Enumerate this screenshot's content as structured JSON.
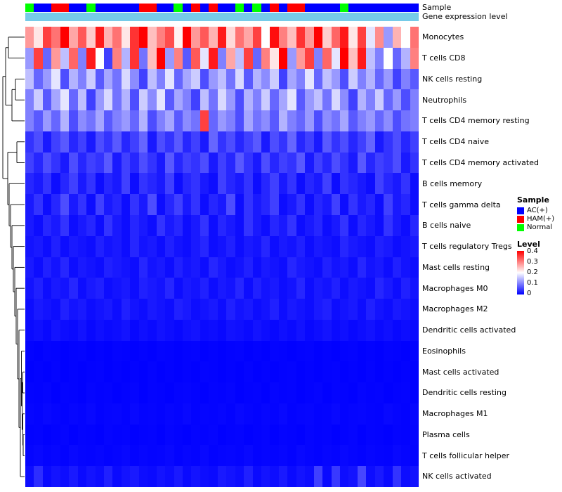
{
  "annotations": {
    "sample_label": "Sample",
    "expression_label": "Gene expression level"
  },
  "legend": {
    "sample_title": "Sample",
    "sample_items": [
      {
        "label": "AC(+)",
        "color": "#0000FF"
      },
      {
        "label": "HAM(+)",
        "color": "#FF0000"
      },
      {
        "label": "Normal",
        "color": "#00FF00"
      }
    ],
    "level_title": "Level",
    "level_ticks": [
      "0.4",
      "0.3",
      "0.2",
      "0.1",
      "0"
    ],
    "level_gradient": [
      "#FF0000",
      "#FFFFFF",
      "#0000FF"
    ]
  },
  "chart_data": {
    "type": "heatmap",
    "value_range": [
      0,
      0.4
    ],
    "colorscale": {
      "low": "#0000FF",
      "mid": "#FFFFFF",
      "high": "#FF0000",
      "midpoint": 0.2
    },
    "expression_bar_color": "#76CBE8",
    "sample_colors": {
      "AC(+)": "#0000FF",
      "HAM(+)": "#FF0000",
      "Normal": "#00FF00"
    },
    "n_columns": 45,
    "sample_annotation": [
      "Normal",
      "AC(+)",
      "AC(+)",
      "HAM(+)",
      "HAM(+)",
      "AC(+)",
      "AC(+)",
      "Normal",
      "AC(+)",
      "AC(+)",
      "AC(+)",
      "AC(+)",
      "AC(+)",
      "HAM(+)",
      "HAM(+)",
      "AC(+)",
      "AC(+)",
      "Normal",
      "AC(+)",
      "HAM(+)",
      "AC(+)",
      "HAM(+)",
      "AC(+)",
      "AC(+)",
      "Normal",
      "AC(+)",
      "Normal",
      "AC(+)",
      "HAM(+)",
      "AC(+)",
      "HAM(+)",
      "HAM(+)",
      "AC(+)",
      "AC(+)",
      "AC(+)",
      "AC(+)",
      "Normal",
      "AC(+)",
      "AC(+)",
      "AC(+)",
      "AC(+)",
      "AC(+)",
      "AC(+)",
      "AC(+)",
      "AC(+)"
    ],
    "rows": [
      "Monocytes",
      "T cells CD8",
      "NK cells resting",
      "Neutrophils",
      "T cells CD4 memory resting",
      "T cells CD4 naive",
      "T cells CD4 memory activated",
      "B cells memory",
      "T cells gamma delta",
      "B cells naive",
      "T cells regulatory Tregs",
      "Mast cells resting",
      "Macrophages M0",
      "Macrophages M2",
      "Dendritic cells activated",
      "Eosinophils",
      "Mast cells activated",
      "Dendritic cells resting",
      "Macrophages M1",
      "Plasma cells",
      "T cells follicular helper",
      "NK cells activated"
    ],
    "values": [
      [
        0.28,
        0.22,
        0.35,
        0.31,
        0.42,
        0.27,
        0.33,
        0.24,
        0.38,
        0.26,
        0.31,
        0.22,
        0.36,
        0.4,
        0.25,
        0.3,
        0.34,
        0.21,
        0.41,
        0.28,
        0.33,
        0.26,
        0.38,
        0.23,
        0.31,
        0.27,
        0.35,
        0.2,
        0.39,
        0.3,
        0.25,
        0.36,
        0.28,
        0.42,
        0.24,
        0.32,
        0.38,
        0.22,
        0.35,
        0.18,
        0.29,
        0.12,
        0.26,
        0.2,
        0.31
      ],
      [
        0.12,
        0.35,
        0.08,
        0.28,
        0.15,
        0.32,
        0.1,
        0.38,
        0.2,
        0.05,
        0.3,
        0.14,
        0.36,
        0.09,
        0.25,
        0.4,
        0.12,
        0.3,
        0.07,
        0.33,
        0.18,
        0.38,
        0.1,
        0.27,
        0.15,
        0.35,
        0.08,
        0.3,
        0.22,
        0.4,
        0.12,
        0.28,
        0.35,
        0.1,
        0.32,
        0.18,
        0.4,
        0.25,
        0.38,
        0.15,
        0.1,
        0.2,
        0.08,
        0.14,
        0.3
      ],
      [
        0.15,
        0.08,
        0.12,
        0.18,
        0.06,
        0.14,
        0.1,
        0.16,
        0.07,
        0.13,
        0.09,
        0.17,
        0.11,
        0.05,
        0.15,
        0.1,
        0.18,
        0.08,
        0.13,
        0.16,
        0.06,
        0.12,
        0.15,
        0.09,
        0.17,
        0.07,
        0.14,
        0.11,
        0.16,
        0.05,
        0.13,
        0.1,
        0.18,
        0.08,
        0.15,
        0.12,
        0.06,
        0.16,
        0.1,
        0.14,
        0.08,
        0.12,
        0.05,
        0.1,
        0.07
      ],
      [
        0.1,
        0.16,
        0.07,
        0.13,
        0.18,
        0.08,
        0.15,
        0.05,
        0.12,
        0.17,
        0.09,
        0.14,
        0.06,
        0.16,
        0.11,
        0.18,
        0.07,
        0.13,
        0.1,
        0.05,
        0.15,
        0.09,
        0.17,
        0.12,
        0.06,
        0.14,
        0.1,
        0.16,
        0.08,
        0.13,
        0.18,
        0.07,
        0.12,
        0.15,
        0.09,
        0.17,
        0.11,
        0.05,
        0.14,
        0.1,
        0.16,
        0.08,
        0.12,
        0.06,
        0.1
      ],
      [
        0.1,
        0.07,
        0.12,
        0.08,
        0.14,
        0.06,
        0.11,
        0.09,
        0.13,
        0.07,
        0.1,
        0.12,
        0.08,
        0.14,
        0.06,
        0.1,
        0.13,
        0.07,
        0.11,
        0.09,
        0.35,
        0.08,
        0.12,
        0.1,
        0.06,
        0.13,
        0.09,
        0.11,
        0.07,
        0.14,
        0.1,
        0.08,
        0.12,
        0.06,
        0.11,
        0.09,
        0.13,
        0.07,
        0.1,
        0.12,
        0.08,
        0.11,
        0.06,
        0.09,
        0.1
      ],
      [
        0.04,
        0.06,
        0.02,
        0.05,
        0.07,
        0.03,
        0.05,
        0.02,
        0.06,
        0.04,
        0.07,
        0.03,
        0.05,
        0.08,
        0.02,
        0.06,
        0.04,
        0.07,
        0.03,
        0.05,
        0.02,
        0.08,
        0.04,
        0.06,
        0.03,
        0.05,
        0.07,
        0.02,
        0.06,
        0.04,
        0.08,
        0.03,
        0.05,
        0.02,
        0.07,
        0.04,
        0.06,
        0.03,
        0.05,
        0.08,
        0.02,
        0.04,
        0.06,
        0.03,
        0.05
      ],
      [
        0.05,
        0.03,
        0.06,
        0.04,
        0.02,
        0.06,
        0.03,
        0.05,
        0.04,
        0.07,
        0.02,
        0.05,
        0.03,
        0.06,
        0.04,
        0.02,
        0.07,
        0.03,
        0.05,
        0.04,
        0.06,
        0.02,
        0.05,
        0.03,
        0.07,
        0.04,
        0.02,
        0.06,
        0.03,
        0.05,
        0.04,
        0.07,
        0.02,
        0.05,
        0.03,
        0.06,
        0.04,
        0.02,
        0.07,
        0.03,
        0.05,
        0.04,
        0.06,
        0.02,
        0.04
      ],
      [
        0.03,
        0.02,
        0.04,
        0.01,
        0.03,
        0.05,
        0.02,
        0.04,
        0.01,
        0.03,
        0.02,
        0.05,
        0.01,
        0.04,
        0.03,
        0.02,
        0.05,
        0.01,
        0.03,
        0.04,
        0.02,
        0.01,
        0.05,
        0.03,
        0.02,
        0.04,
        0.01,
        0.03,
        0.05,
        0.02,
        0.04,
        0.01,
        0.03,
        0.02,
        0.05,
        0.01,
        0.04,
        0.03,
        0.02,
        0.01,
        0.05,
        0.03,
        0.02,
        0.04,
        0.01
      ],
      [
        0.02,
        0.04,
        0.01,
        0.03,
        0.06,
        0.02,
        0.04,
        0.01,
        0.05,
        0.02,
        0.03,
        0.01,
        0.04,
        0.02,
        0.06,
        0.01,
        0.03,
        0.05,
        0.02,
        0.04,
        0.01,
        0.03,
        0.02,
        0.06,
        0.01,
        0.04,
        0.02,
        0.03,
        0.05,
        0.01,
        0.02,
        0.04,
        0.01,
        0.03,
        0.02,
        0.05,
        0.01,
        0.04,
        0.02,
        0.03,
        0.01,
        0.05,
        0.02,
        0.03,
        0.01
      ],
      [
        0.02,
        0.01,
        0.03,
        0.02,
        0.04,
        0.01,
        0.02,
        0.03,
        0.01,
        0.04,
        0.02,
        0.01,
        0.03,
        0.02,
        0.01,
        0.04,
        0.02,
        0.03,
        0.01,
        0.02,
        0.04,
        0.01,
        0.03,
        0.02,
        0.01,
        0.04,
        0.02,
        0.01,
        0.03,
        0.02,
        0.04,
        0.01,
        0.02,
        0.03,
        0.01,
        0.02,
        0.04,
        0.01,
        0.03,
        0.02,
        0.01,
        0.04,
        0.02,
        0.01,
        0.03
      ],
      [
        0.015,
        0.02,
        0.01,
        0.025,
        0.01,
        0.02,
        0.015,
        0.01,
        0.025,
        0.015,
        0.02,
        0.01,
        0.03,
        0.015,
        0.02,
        0.01,
        0.025,
        0.015,
        0.01,
        0.02,
        0.03,
        0.01,
        0.015,
        0.025,
        0.01,
        0.02,
        0.015,
        0.03,
        0.01,
        0.02,
        0.015,
        0.025,
        0.01,
        0.02,
        0.015,
        0.01,
        0.03,
        0.02,
        0.015,
        0.01,
        0.025,
        0.02,
        0.01,
        0.015,
        0.02
      ],
      [
        0.02,
        0.01,
        0.025,
        0.015,
        0.03,
        0.01,
        0.02,
        0.015,
        0.01,
        0.025,
        0.02,
        0.015,
        0.01,
        0.03,
        0.015,
        0.02,
        0.01,
        0.025,
        0.015,
        0.02,
        0.01,
        0.03,
        0.02,
        0.01,
        0.015,
        0.025,
        0.01,
        0.02,
        0.015,
        0.01,
        0.03,
        0.02,
        0.015,
        0.01,
        0.025,
        0.015,
        0.02,
        0.01,
        0.03,
        0.015,
        0.02,
        0.01,
        0.025,
        0.015,
        0.01
      ],
      [
        0.015,
        0.025,
        0.01,
        0.02,
        0.015,
        0.03,
        0.01,
        0.02,
        0.025,
        0.01,
        0.015,
        0.02,
        0.01,
        0.025,
        0.02,
        0.015,
        0.03,
        0.01,
        0.02,
        0.015,
        0.025,
        0.01,
        0.02,
        0.015,
        0.03,
        0.01,
        0.025,
        0.015,
        0.02,
        0.01,
        0.015,
        0.03,
        0.01,
        0.02,
        0.015,
        0.025,
        0.01,
        0.02,
        0.015,
        0.01,
        0.03,
        0.02,
        0.01,
        0.025,
        0.015
      ],
      [
        0.01,
        0.02,
        0.015,
        0.01,
        0.025,
        0.015,
        0.02,
        0.01,
        0.015,
        0.02,
        0.01,
        0.025,
        0.015,
        0.01,
        0.02,
        0.015,
        0.01,
        0.025,
        0.02,
        0.01,
        0.015,
        0.02,
        0.01,
        0.025,
        0.015,
        0.02,
        0.01,
        0.015,
        0.025,
        0.01,
        0.02,
        0.015,
        0.01,
        0.02,
        0.025,
        0.01,
        0.015,
        0.02,
        0.01,
        0.025,
        0.015,
        0.01,
        0.02,
        0.015,
        0.01
      ],
      [
        0.008,
        0.012,
        0.006,
        0.015,
        0.01,
        0.008,
        0.014,
        0.006,
        0.012,
        0.008,
        0.01,
        0.015,
        0.006,
        0.012,
        0.008,
        0.014,
        0.01,
        0.006,
        0.012,
        0.015,
        0.008,
        0.01,
        0.006,
        0.014,
        0.012,
        0.008,
        0.015,
        0.01,
        0.006,
        0.012,
        0.008,
        0.014,
        0.006,
        0.01,
        0.015,
        0.008,
        0.012,
        0.006,
        0.01,
        0.014,
        0.008,
        0.012,
        0.006,
        0.01,
        0.008
      ],
      [
        0.002,
        0.001,
        0.003,
        0.002,
        0.001,
        0.002,
        0.003,
        0.001,
        0.002,
        0.001,
        0.003,
        0.002,
        0.001,
        0.002,
        0.001,
        0.003,
        0.002,
        0.001,
        0.002,
        0.003,
        0.001,
        0.002,
        0.001,
        0.002,
        0.003,
        0.001,
        0.002,
        0.001,
        0.003,
        0.002,
        0.001,
        0.002,
        0.003,
        0.001,
        0.002,
        0.001,
        0.002,
        0.003,
        0.001,
        0.002,
        0.001,
        0.003,
        0.002,
        0.001,
        0.002
      ],
      [
        0.001,
        0.002,
        0.001,
        0.003,
        0.001,
        0.002,
        0.001,
        0.002,
        0.003,
        0.001,
        0.002,
        0.001,
        0.002,
        0.001,
        0.003,
        0.001,
        0.002,
        0.001,
        0.002,
        0.001,
        0.003,
        0.002,
        0.001,
        0.002,
        0.001,
        0.003,
        0.001,
        0.002,
        0.001,
        0.002,
        0.003,
        0.001,
        0.002,
        0.001,
        0.002,
        0.003,
        0.001,
        0.002,
        0.001,
        0.003,
        0.001,
        0.002,
        0.001,
        0.002,
        0.001
      ],
      [
        0.003,
        0.002,
        0.004,
        0.001,
        0.003,
        0.002,
        0.001,
        0.004,
        0.002,
        0.003,
        0.001,
        0.002,
        0.004,
        0.001,
        0.003,
        0.002,
        0.001,
        0.003,
        0.004,
        0.002,
        0.001,
        0.003,
        0.002,
        0.004,
        0.001,
        0.002,
        0.003,
        0.001,
        0.004,
        0.002,
        0.003,
        0.001,
        0.002,
        0.004,
        0.001,
        0.003,
        0.002,
        0.001,
        0.004,
        0.002,
        0.003,
        0.001,
        0.002,
        0.003,
        0.001
      ],
      [
        0.005,
        0.003,
        0.006,
        0.004,
        0.002,
        0.005,
        0.003,
        0.006,
        0.002,
        0.004,
        0.005,
        0.002,
        0.006,
        0.003,
        0.004,
        0.002,
        0.005,
        0.003,
        0.006,
        0.002,
        0.004,
        0.003,
        0.005,
        0.002,
        0.006,
        0.004,
        0.002,
        0.005,
        0.003,
        0.006,
        0.002,
        0.004,
        0.005,
        0.002,
        0.003,
        0.006,
        0.002,
        0.004,
        0.005,
        0.003,
        0.002,
        0.006,
        0.004,
        0.002,
        0.005
      ],
      [
        0.002,
        0.003,
        0.001,
        0.002,
        0.004,
        0.001,
        0.003,
        0.002,
        0.001,
        0.004,
        0.002,
        0.003,
        0.001,
        0.002,
        0.003,
        0.001,
        0.004,
        0.002,
        0.001,
        0.003,
        0.002,
        0.004,
        0.001,
        0.002,
        0.003,
        0.001,
        0.002,
        0.004,
        0.001,
        0.003,
        0.002,
        0.001,
        0.004,
        0.002,
        0.003,
        0.001,
        0.002,
        0.004,
        0.001,
        0.003,
        0.002,
        0.001,
        0.003,
        0.002,
        0.004
      ],
      [
        0.004,
        0.006,
        0.003,
        0.005,
        0.002,
        0.006,
        0.004,
        0.003,
        0.005,
        0.002,
        0.004,
        0.006,
        0.002,
        0.005,
        0.003,
        0.004,
        0.006,
        0.002,
        0.005,
        0.003,
        0.006,
        0.002,
        0.004,
        0.005,
        0.003,
        0.006,
        0.002,
        0.004,
        0.003,
        0.005,
        0.002,
        0.006,
        0.004,
        0.002,
        0.005,
        0.003,
        0.006,
        0.004,
        0.002,
        0.005,
        0.003,
        0.002,
        0.006,
        0.004,
        0.003
      ],
      [
        0.01,
        0.035,
        0.008,
        0.015,
        0.01,
        0.02,
        0.008,
        0.015,
        0.01,
        0.025,
        0.008,
        0.015,
        0.02,
        0.01,
        0.008,
        0.015,
        0.01,
        0.02,
        0.008,
        0.015,
        0.01,
        0.008,
        0.02,
        0.015,
        0.01,
        0.025,
        0.008,
        0.015,
        0.01,
        0.02,
        0.008,
        0.015,
        0.01,
        0.05,
        0.008,
        0.045,
        0.01,
        0.015,
        0.055,
        0.01,
        0.02,
        0.008,
        0.04,
        0.01,
        0.015
      ]
    ]
  }
}
